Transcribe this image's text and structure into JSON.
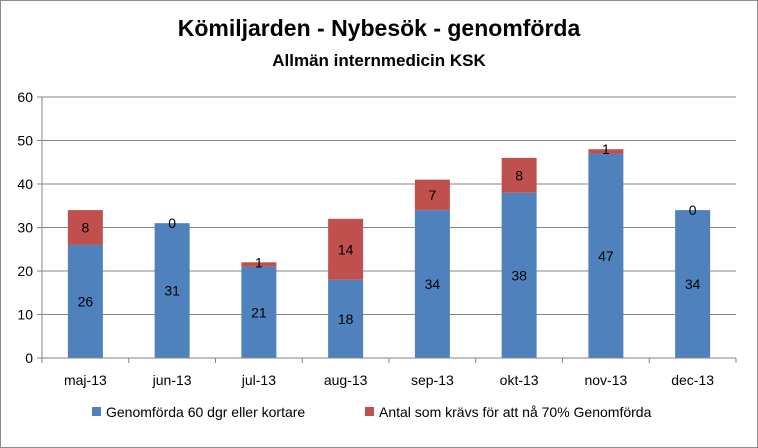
{
  "chart_data": {
    "type": "bar",
    "stacked": true,
    "title": "Kömiljarden - Nybesök - genomförda",
    "subtitle": "Allmän internmedicin KSK",
    "xlabel": "",
    "ylabel": "",
    "categories": [
      "maj-13",
      "jun-13",
      "jul-13",
      "aug-13",
      "sep-13",
      "okt-13",
      "nov-13",
      "dec-13"
    ],
    "series": [
      {
        "name": "Genomförda 60 dgr eller kortare",
        "color": "#4f81bd",
        "values": [
          26,
          31,
          21,
          18,
          34,
          38,
          47,
          34
        ]
      },
      {
        "name": "Antal som krävs för att nå 70% Genomförda",
        "color": "#c0504d",
        "values": [
          8,
          0,
          1,
          14,
          7,
          8,
          1,
          0
        ]
      }
    ],
    "data_labels": [
      [
        "26",
        "31",
        "21",
        "18",
        "34",
        "38",
        "47",
        "34"
      ],
      [
        "8",
        "0",
        "1",
        "14",
        "7",
        "8",
        "1",
        "0"
      ]
    ],
    "ylim": [
      0,
      60
    ],
    "yticks": [
      "0",
      "10",
      "20",
      "30",
      "40",
      "50",
      "60"
    ],
    "grid": true,
    "legend_position": "bottom"
  }
}
